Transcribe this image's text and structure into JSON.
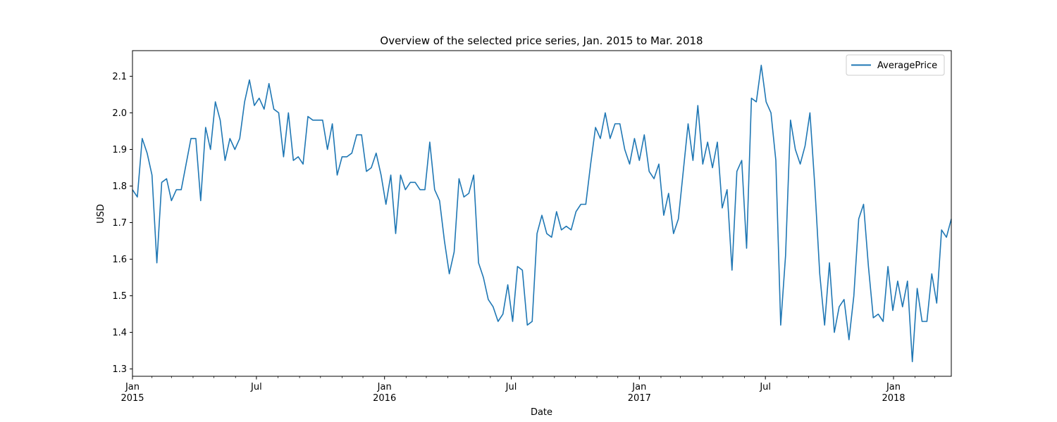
{
  "chart_data": {
    "type": "line",
    "title": "Overview of the selected price series, Jan. 2015 to Mar. 2018",
    "xlabel": "Date",
    "ylabel": "USD",
    "xlim": [
      "2015-01-04",
      "2018-03-25"
    ],
    "ylim": [
      1.28,
      2.17
    ],
    "grid": false,
    "legend": {
      "placement": "top-right"
    },
    "yticks": [
      {
        "value": 1.3,
        "label": "1.3"
      },
      {
        "value": 1.4,
        "label": "1.4"
      },
      {
        "value": 1.5,
        "label": "1.5"
      },
      {
        "value": 1.6,
        "label": "1.6"
      },
      {
        "value": 1.7,
        "label": "1.7"
      },
      {
        "value": 1.8,
        "label": "1.8"
      },
      {
        "value": 1.9,
        "label": "1.9"
      },
      {
        "value": 2.0,
        "label": "2.0"
      },
      {
        "value": 2.1,
        "label": "2.1"
      }
    ],
    "xticks": [
      {
        "date": "2015-01-04",
        "label": "Jan",
        "sublabel": "2015"
      },
      {
        "date": "2015-07-01",
        "label": "Jul",
        "sublabel": ""
      },
      {
        "date": "2016-01-01",
        "label": "Jan",
        "sublabel": "2016"
      },
      {
        "date": "2016-07-01",
        "label": "Jul",
        "sublabel": ""
      },
      {
        "date": "2017-01-01",
        "label": "Jan",
        "sublabel": "2017"
      },
      {
        "date": "2017-07-01",
        "label": "Jul",
        "sublabel": ""
      },
      {
        "date": "2018-01-01",
        "label": "Jan",
        "sublabel": "2018"
      }
    ],
    "minor_xticks": [
      "2015-02-01",
      "2015-03-01",
      "2015-04-01",
      "2015-05-01",
      "2015-06-01",
      "2015-08-01",
      "2015-09-01",
      "2015-10-01",
      "2015-11-01",
      "2015-12-01",
      "2016-02-01",
      "2016-03-01",
      "2016-04-01",
      "2016-05-01",
      "2016-06-01",
      "2016-08-01",
      "2016-09-01",
      "2016-10-01",
      "2016-11-01",
      "2016-12-01",
      "2017-02-01",
      "2017-03-01",
      "2017-04-01",
      "2017-05-01",
      "2017-06-01",
      "2017-08-01",
      "2017-09-01",
      "2017-10-01",
      "2017-11-01",
      "2017-12-01",
      "2018-02-01",
      "2018-03-01"
    ],
    "series": [
      {
        "name": "AveragePrice",
        "color": "#1f77b4",
        "x": [
          "2015-01-04",
          "2015-01-11",
          "2015-01-18",
          "2015-01-25",
          "2015-02-01",
          "2015-02-08",
          "2015-02-15",
          "2015-02-22",
          "2015-03-01",
          "2015-03-08",
          "2015-03-15",
          "2015-03-22",
          "2015-03-29",
          "2015-04-05",
          "2015-04-12",
          "2015-04-19",
          "2015-04-26",
          "2015-05-03",
          "2015-05-10",
          "2015-05-17",
          "2015-05-24",
          "2015-05-31",
          "2015-06-07",
          "2015-06-14",
          "2015-06-21",
          "2015-06-28",
          "2015-07-05",
          "2015-07-12",
          "2015-07-19",
          "2015-07-26",
          "2015-08-02",
          "2015-08-09",
          "2015-08-16",
          "2015-08-23",
          "2015-08-30",
          "2015-09-06",
          "2015-09-13",
          "2015-09-20",
          "2015-09-27",
          "2015-10-04",
          "2015-10-11",
          "2015-10-18",
          "2015-10-25",
          "2015-11-01",
          "2015-11-08",
          "2015-11-15",
          "2015-11-22",
          "2015-11-29",
          "2015-12-06",
          "2015-12-13",
          "2015-12-20",
          "2015-12-27",
          "2016-01-03",
          "2016-01-10",
          "2016-01-17",
          "2016-01-24",
          "2016-01-31",
          "2016-02-07",
          "2016-02-14",
          "2016-02-21",
          "2016-02-28",
          "2016-03-06",
          "2016-03-13",
          "2016-03-20",
          "2016-03-27",
          "2016-04-03",
          "2016-04-10",
          "2016-04-17",
          "2016-04-24",
          "2016-05-01",
          "2016-05-08",
          "2016-05-15",
          "2016-05-22",
          "2016-05-29",
          "2016-06-05",
          "2016-06-12",
          "2016-06-19",
          "2016-06-26",
          "2016-07-03",
          "2016-07-10",
          "2016-07-17",
          "2016-07-24",
          "2016-07-31",
          "2016-08-07",
          "2016-08-14",
          "2016-08-21",
          "2016-08-28",
          "2016-09-04",
          "2016-09-11",
          "2016-09-18",
          "2016-09-25",
          "2016-10-02",
          "2016-10-09",
          "2016-10-16",
          "2016-10-23",
          "2016-10-30",
          "2016-11-06",
          "2016-11-13",
          "2016-11-20",
          "2016-11-27",
          "2016-12-04",
          "2016-12-11",
          "2016-12-18",
          "2016-12-25",
          "2017-01-01",
          "2017-01-08",
          "2017-01-15",
          "2017-01-22",
          "2017-01-29",
          "2017-02-05",
          "2017-02-12",
          "2017-02-19",
          "2017-02-26",
          "2017-03-05",
          "2017-03-12",
          "2017-03-19",
          "2017-03-26",
          "2017-04-02",
          "2017-04-09",
          "2017-04-16",
          "2017-04-23",
          "2017-04-30",
          "2017-05-07",
          "2017-05-14",
          "2017-05-21",
          "2017-05-28",
          "2017-06-04",
          "2017-06-11",
          "2017-06-18",
          "2017-06-25",
          "2017-07-02",
          "2017-07-09",
          "2017-07-16",
          "2017-07-23",
          "2017-07-30",
          "2017-08-06",
          "2017-08-13",
          "2017-08-20",
          "2017-08-27",
          "2017-09-03",
          "2017-09-10",
          "2017-09-17",
          "2017-09-24",
          "2017-10-01",
          "2017-10-08",
          "2017-10-15",
          "2017-10-22",
          "2017-10-29",
          "2017-11-05",
          "2017-11-12",
          "2017-11-19",
          "2017-11-26",
          "2017-12-03",
          "2017-12-10",
          "2017-12-17",
          "2017-12-24",
          "2017-12-31",
          "2018-01-07",
          "2018-01-14",
          "2018-01-21",
          "2018-01-28",
          "2018-02-04",
          "2018-02-11",
          "2018-02-18",
          "2018-02-25",
          "2018-03-04",
          "2018-03-11",
          "2018-03-18",
          "2018-03-25"
        ],
        "values": [
          1.79,
          1.77,
          1.93,
          1.89,
          1.83,
          1.59,
          1.81,
          1.82,
          1.76,
          1.79,
          1.79,
          1.86,
          1.93,
          1.93,
          1.76,
          1.96,
          1.9,
          2.03,
          1.98,
          1.87,
          1.93,
          1.9,
          1.93,
          2.03,
          2.09,
          2.02,
          2.04,
          2.01,
          2.08,
          2.01,
          2.0,
          1.88,
          2.0,
          1.87,
          1.88,
          1.86,
          1.99,
          1.98,
          1.98,
          1.98,
          1.9,
          1.97,
          1.83,
          1.88,
          1.88,
          1.89,
          1.94,
          1.94,
          1.84,
          1.85,
          1.89,
          1.83,
          1.75,
          1.83,
          1.67,
          1.83,
          1.79,
          1.81,
          1.81,
          1.79,
          1.79,
          1.92,
          1.79,
          1.76,
          1.65,
          1.56,
          1.62,
          1.82,
          1.77,
          1.78,
          1.83,
          1.59,
          1.55,
          1.49,
          1.47,
          1.43,
          1.45,
          1.53,
          1.43,
          1.58,
          1.57,
          1.42,
          1.43,
          1.67,
          1.72,
          1.67,
          1.66,
          1.73,
          1.68,
          1.69,
          1.68,
          1.73,
          1.75,
          1.75,
          1.86,
          1.96,
          1.93,
          2.0,
          1.93,
          1.97,
          1.97,
          1.9,
          1.86,
          1.93,
          1.87,
          1.94,
          1.84,
          1.82,
          1.86,
          1.72,
          1.78,
          1.67,
          1.71,
          1.84,
          1.97,
          1.87,
          2.02,
          1.86,
          1.92,
          1.85,
          1.92,
          1.74,
          1.79,
          1.57,
          1.84,
          1.87,
          1.63,
          2.04,
          2.03,
          2.13,
          2.03,
          2.0,
          1.87,
          1.42,
          1.61,
          1.98,
          1.9,
          1.86,
          1.91,
          2.0,
          1.8,
          1.56,
          1.42,
          1.59,
          1.4,
          1.47,
          1.49,
          1.38,
          1.5,
          1.71,
          1.75,
          1.58,
          1.44,
          1.45,
          1.43,
          1.58,
          1.46,
          1.54,
          1.47,
          1.54,
          1.32,
          1.52,
          1.43,
          1.43,
          1.56,
          1.48,
          1.68,
          1.66,
          1.71
        ]
      }
    ]
  }
}
